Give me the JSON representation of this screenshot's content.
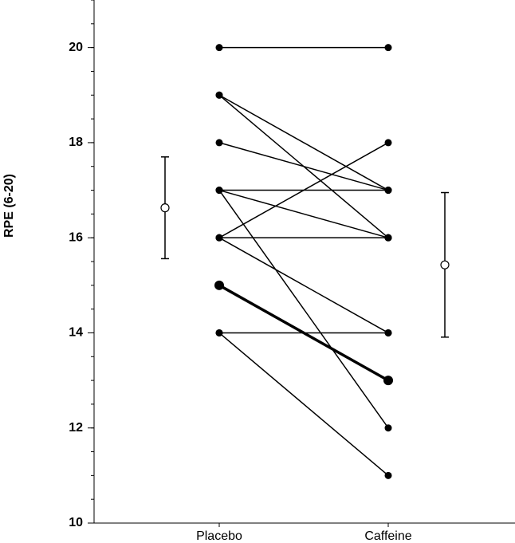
{
  "chart_data": {
    "type": "paired",
    "ylabel": "RPE (6-20)",
    "categories": [
      "Placebo",
      "Caffeine"
    ],
    "ylim": [
      10,
      21
    ],
    "yticks": [
      10,
      12,
      14,
      16,
      18,
      20
    ],
    "minor_ytick_step": 0.5,
    "pairs": [
      [
        20,
        20
      ],
      [
        19,
        17
      ],
      [
        19,
        16
      ],
      [
        18,
        17
      ],
      [
        17,
        17
      ],
      [
        17,
        16
      ],
      [
        17,
        12
      ],
      [
        16,
        18
      ],
      [
        16,
        16
      ],
      [
        16,
        14
      ],
      [
        15,
        13
      ],
      [
        14,
        14
      ],
      [
        14,
        11
      ]
    ],
    "highlight": 10,
    "summary": [
      {
        "mean": 16.63,
        "sd": 1.07
      },
      {
        "mean": 15.43,
        "sd": 1.52
      }
    ],
    "color": "#000000"
  }
}
